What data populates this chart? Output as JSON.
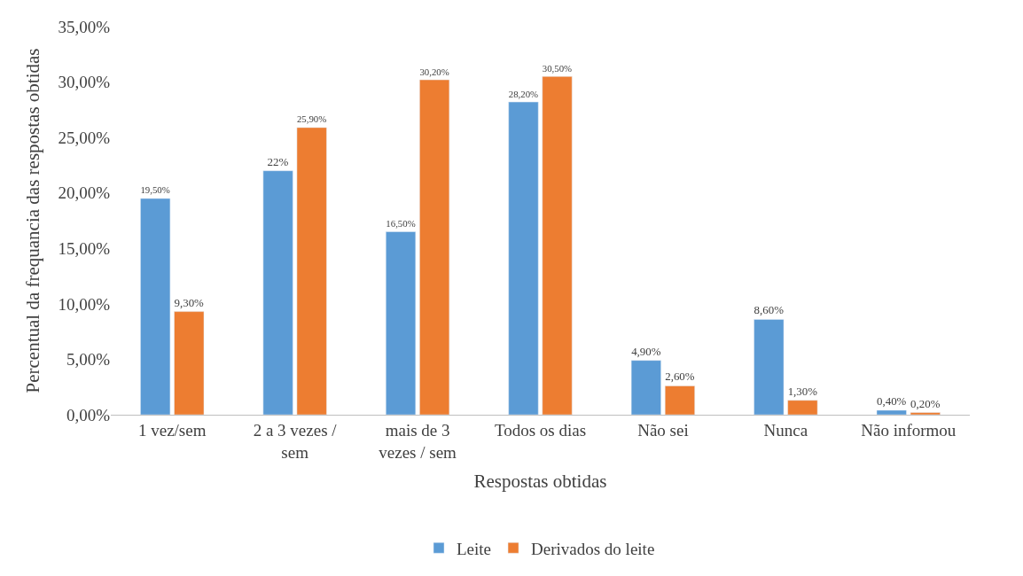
{
  "chart_data": {
    "type": "bar",
    "xlabel": "Respostas obtidas",
    "ylabel": "Percentual da frequancia das respostas obtidas",
    "categories": [
      "1 vez/sem",
      "2 a 3 vezes / sem",
      "mais de 3 vezes / sem",
      "Todos os dias",
      "Não sei",
      "Nunca",
      "Não informou"
    ],
    "series": [
      {
        "name": "Leite",
        "color": "#5b9bd5",
        "values": [
          19.5,
          22,
          16.5,
          28.2,
          4.9,
          8.6,
          0.4
        ],
        "value_labels": [
          "19,50%",
          "22%",
          "16,50%",
          "28,20%",
          "4,90%",
          "8,60%",
          "0,40%"
        ]
      },
      {
        "name": "Derivados do leite",
        "color": "#ed7d31",
        "values": [
          9.3,
          25.9,
          30.2,
          30.5,
          2.6,
          1.3,
          0.2
        ],
        "value_labels": [
          "9,30%",
          "25,90%",
          "30,20%",
          "30,50%",
          "2,60%",
          "1,30%",
          "0,20%"
        ]
      }
    ],
    "ylim": [
      0,
      35
    ],
    "yticks": [
      {
        "value": 0,
        "label": "0,00%"
      },
      {
        "value": 5,
        "label": "5,00%"
      },
      {
        "value": 10,
        "label": "10,00%"
      },
      {
        "value": 15,
        "label": "15,00%"
      },
      {
        "value": 20,
        "label": "20,00%"
      },
      {
        "value": 25,
        "label": "25,00%"
      },
      {
        "value": 30,
        "label": "30,00%"
      },
      {
        "value": 35,
        "label": "35,00%"
      }
    ],
    "legend": "bottom"
  }
}
